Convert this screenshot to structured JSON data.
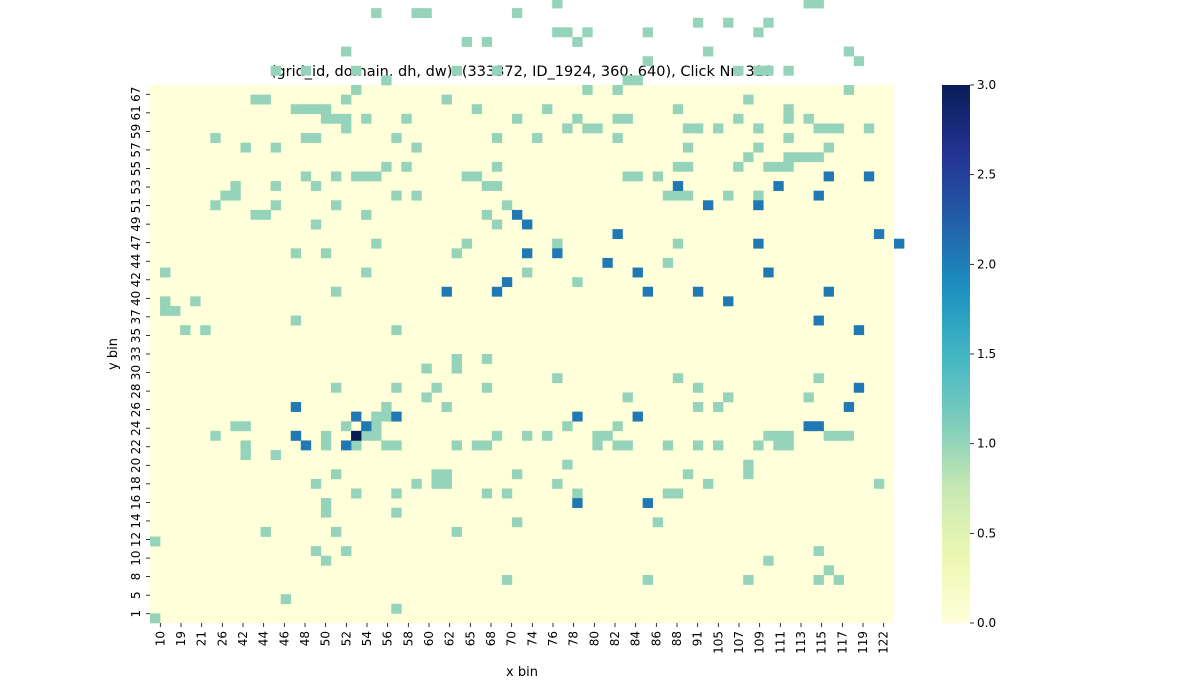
{
  "chart_data": {
    "type": "heatmap",
    "title": "(grid_id, domain, dh, dw): (333372, ID_1924, 360, 640), Click Nr: 319",
    "xlabel": "x bin",
    "ylabel": "y bin",
    "x_tick_labels": [
      "10",
      "19",
      "21",
      "26",
      "42",
      "44",
      "46",
      "48",
      "50",
      "52",
      "54",
      "56",
      "58",
      "60",
      "62",
      "65",
      "68",
      "70",
      "74",
      "76",
      "78",
      "80",
      "82",
      "84",
      "86",
      "88",
      "91",
      "105",
      "107",
      "109",
      "111",
      "113",
      "115",
      "117",
      "119",
      "122"
    ],
    "y_tick_labels": [
      "1",
      "5",
      "8",
      "10",
      "12",
      "14",
      "16",
      "18",
      "20",
      "22",
      "24",
      "26",
      "28",
      "30",
      "33",
      "35",
      "37",
      "40",
      "42",
      "44",
      "47",
      "49",
      "51",
      "53",
      "55",
      "57",
      "59",
      "61",
      "67"
    ],
    "colorbar": {
      "min": 0.0,
      "max": 3.0,
      "ticks": [
        "0.0",
        "0.5",
        "1.0",
        "1.5",
        "2.0",
        "2.5",
        "3.0"
      ]
    },
    "colors": {
      "low": "#ffffd9",
      "one": "#95d4bb",
      "two": "#2079b5",
      "three": "#081d58"
    },
    "grid_columns": 74,
    "grid_rows": 56,
    "cells": [
      [
        0,
        0,
        1
      ],
      [
        24,
        1,
        1
      ],
      [
        13,
        2,
        1
      ],
      [
        35,
        4,
        1
      ],
      [
        49,
        4,
        1
      ],
      [
        59,
        4,
        1
      ],
      [
        66,
        4,
        1
      ],
      [
        68,
        4,
        1
      ],
      [
        67,
        5,
        1
      ],
      [
        17,
        6,
        1
      ],
      [
        61,
        6,
        1
      ],
      [
        16,
        7,
        1
      ],
      [
        19,
        7,
        1
      ],
      [
        66,
        7,
        1
      ],
      [
        0,
        8,
        1
      ],
      [
        11,
        9,
        1
      ],
      [
        18,
        9,
        1
      ],
      [
        30,
        9,
        1
      ],
      [
        50,
        10,
        1
      ],
      [
        36,
        10,
        1
      ],
      [
        17,
        11,
        1
      ],
      [
        24,
        11,
        1
      ],
      [
        17,
        12,
        1
      ],
      [
        20,
        13,
        1
      ],
      [
        24,
        13,
        1
      ],
      [
        33,
        13,
        1
      ],
      [
        35,
        13,
        1
      ],
      [
        42,
        13,
        1
      ],
      [
        51,
        13,
        1
      ],
      [
        52,
        13,
        1
      ],
      [
        16,
        14,
        1
      ],
      [
        26,
        14,
        1
      ],
      [
        28,
        14,
        1
      ],
      [
        29,
        14,
        1
      ],
      [
        40,
        14,
        1
      ],
      [
        55,
        14,
        1
      ],
      [
        72,
        14,
        1
      ],
      [
        18,
        15,
        1
      ],
      [
        53,
        15,
        1
      ],
      [
        59,
        15,
        1
      ],
      [
        28,
        15,
        1
      ],
      [
        29,
        15,
        1
      ],
      [
        36,
        15,
        1
      ],
      [
        41,
        16,
        1
      ],
      [
        59,
        16,
        1
      ],
      [
        9,
        17,
        1
      ],
      [
        12,
        17,
        1
      ],
      [
        9,
        18,
        1
      ],
      [
        17,
        18,
        1
      ],
      [
        20,
        18,
        1
      ],
      [
        23,
        18,
        1
      ],
      [
        24,
        18,
        1
      ],
      [
        30,
        18,
        1
      ],
      [
        32,
        18,
        1
      ],
      [
        33,
        18,
        1
      ],
      [
        44,
        18,
        1
      ],
      [
        46,
        18,
        1
      ],
      [
        47,
        18,
        1
      ],
      [
        51,
        18,
        1
      ],
      [
        54,
        18,
        1
      ],
      [
        56,
        18,
        1
      ],
      [
        60,
        18,
        1
      ],
      [
        63,
        18,
        1
      ],
      [
        62,
        18,
        1
      ],
      [
        63,
        19,
        1
      ],
      [
        6,
        19,
        1
      ],
      [
        14,
        19,
        1
      ],
      [
        20,
        19,
        1
      ],
      [
        21,
        19,
        1
      ],
      [
        22,
        19,
        1
      ],
      [
        17,
        19,
        1
      ],
      [
        34,
        19,
        1
      ],
      [
        37,
        19,
        1
      ],
      [
        39,
        19,
        1
      ],
      [
        44,
        19,
        1
      ],
      [
        45,
        19,
        1
      ],
      [
        61,
        19,
        1
      ],
      [
        62,
        19,
        1
      ],
      [
        67,
        19,
        1
      ],
      [
        68,
        19,
        1
      ],
      [
        69,
        19,
        1
      ],
      [
        8,
        20,
        1
      ],
      [
        9,
        20,
        1
      ],
      [
        22,
        20,
        1
      ],
      [
        19,
        20,
        1
      ],
      [
        41,
        20,
        1
      ],
      [
        46,
        20,
        1
      ],
      [
        22,
        21,
        1
      ],
      [
        23,
        21,
        1
      ],
      [
        23,
        22,
        1
      ],
      [
        29,
        22,
        1
      ],
      [
        54,
        22,
        1
      ],
      [
        56,
        22,
        1
      ],
      [
        27,
        23,
        1
      ],
      [
        47,
        23,
        1
      ],
      [
        57,
        23,
        1
      ],
      [
        65,
        23,
        1
      ],
      [
        18,
        24,
        1
      ],
      [
        24,
        24,
        1
      ],
      [
        28,
        24,
        1
      ],
      [
        54,
        24,
        1
      ],
      [
        33,
        24,
        1
      ],
      [
        40,
        25,
        1
      ],
      [
        52,
        25,
        1
      ],
      [
        66,
        25,
        1
      ],
      [
        27,
        26,
        1
      ],
      [
        30,
        26,
        1
      ],
      [
        30,
        27,
        1
      ],
      [
        33,
        27,
        1
      ],
      [
        3,
        30,
        1
      ],
      [
        5,
        30,
        1
      ],
      [
        24,
        30,
        1
      ],
      [
        14,
        31,
        1
      ],
      [
        2,
        32,
        1
      ],
      [
        1,
        33,
        1
      ],
      [
        1,
        32,
        1
      ],
      [
        4,
        33,
        1
      ],
      [
        18,
        34,
        1
      ],
      [
        42,
        35,
        1
      ],
      [
        1,
        36,
        1
      ],
      [
        21,
        36,
        1
      ],
      [
        37,
        36,
        1
      ],
      [
        51,
        37,
        1
      ],
      [
        14,
        38,
        1
      ],
      [
        17,
        38,
        1
      ],
      [
        30,
        38,
        1
      ],
      [
        22,
        39,
        1
      ],
      [
        31,
        39,
        1
      ],
      [
        40,
        39,
        1
      ],
      [
        52,
        39,
        1
      ],
      [
        34,
        41,
        1
      ],
      [
        6,
        43,
        1
      ],
      [
        10,
        42,
        1
      ],
      [
        11,
        42,
        1
      ],
      [
        16,
        41,
        1
      ],
      [
        21,
        42,
        1
      ],
      [
        33,
        42,
        1
      ],
      [
        8,
        45,
        1
      ],
      [
        12,
        43,
        1
      ],
      [
        18,
        43,
        1
      ],
      [
        35,
        43,
        1
      ],
      [
        12,
        45,
        1
      ],
      [
        16,
        45,
        1
      ],
      [
        15,
        46,
        1
      ],
      [
        18,
        46,
        1
      ],
      [
        20,
        46,
        1
      ],
      [
        21,
        46,
        1
      ],
      [
        22,
        46,
        1
      ],
      [
        23,
        47,
        1
      ],
      [
        25,
        47,
        1
      ],
      [
        33,
        45,
        1
      ],
      [
        34,
        45,
        1
      ],
      [
        31,
        46,
        1
      ],
      [
        32,
        46,
        1
      ],
      [
        34,
        47,
        1
      ],
      [
        47,
        46,
        1
      ],
      [
        48,
        46,
        1
      ],
      [
        50,
        46,
        1
      ],
      [
        52,
        47,
        1
      ],
      [
        53,
        47,
        1
      ],
      [
        58,
        47,
        1
      ],
      [
        59,
        48,
        1
      ],
      [
        61,
        47,
        1
      ],
      [
        62,
        47,
        1
      ],
      [
        63,
        47,
        1
      ],
      [
        53,
        49,
        1
      ],
      [
        60,
        49,
        1
      ],
      [
        63,
        48,
        1
      ],
      [
        64,
        48,
        1
      ],
      [
        65,
        48,
        1
      ],
      [
        66,
        48,
        1
      ],
      [
        67,
        49,
        1
      ],
      [
        19,
        51,
        1
      ],
      [
        17,
        52,
        1
      ],
      [
        18,
        52,
        1
      ],
      [
        19,
        52,
        1
      ],
      [
        21,
        52,
        1
      ],
      [
        25,
        52,
        1
      ],
      [
        36,
        52,
        1
      ],
      [
        42,
        52,
        1
      ],
      [
        41,
        51,
        1
      ],
      [
        43,
        51,
        1
      ],
      [
        44,
        51,
        1
      ],
      [
        46,
        52,
        1
      ],
      [
        47,
        52,
        1
      ],
      [
        53,
        51,
        1
      ],
      [
        54,
        51,
        1
      ],
      [
        56,
        51,
        1
      ],
      [
        58,
        52,
        1
      ],
      [
        60,
        51,
        1
      ],
      [
        63,
        52,
        1
      ],
      [
        65,
        52,
        1
      ],
      [
        66,
        51,
        1
      ],
      [
        67,
        51,
        1
      ],
      [
        68,
        51,
        1
      ],
      [
        71,
        51,
        1
      ],
      [
        9,
        49,
        1
      ],
      [
        12,
        49,
        1
      ],
      [
        26,
        49,
        1
      ],
      [
        6,
        50,
        1
      ],
      [
        15,
        50,
        1
      ],
      [
        16,
        50,
        1
      ],
      [
        24,
        50,
        1
      ],
      [
        46,
        50,
        1
      ],
      [
        63,
        50,
        1
      ],
      [
        8,
        44,
        1
      ],
      [
        7,
        44,
        1
      ],
      [
        24,
        44,
        1
      ],
      [
        26,
        44,
        1
      ],
      [
        51,
        44,
        1
      ],
      [
        52,
        44,
        1
      ],
      [
        53,
        44,
        1
      ],
      [
        57,
        44,
        1
      ],
      [
        60,
        44,
        1
      ],
      [
        14,
        53,
        1
      ],
      [
        15,
        53,
        1
      ],
      [
        16,
        53,
        1
      ],
      [
        17,
        53,
        1
      ],
      [
        32,
        53,
        1
      ],
      [
        39,
        53,
        1
      ],
      [
        52,
        53,
        1
      ],
      [
        63,
        53,
        1
      ],
      [
        10,
        54,
        1
      ],
      [
        11,
        54,
        1
      ],
      [
        19,
        54,
        1
      ],
      [
        29,
        54,
        1
      ],
      [
        59,
        54,
        1
      ],
      [
        69,
        55,
        1
      ],
      [
        20,
        55,
        1
      ],
      [
        23,
        56,
        1
      ],
      [
        46,
        55,
        1
      ],
      [
        43,
        55,
        1
      ],
      [
        47,
        56,
        1
      ],
      [
        48,
        56,
        1
      ],
      [
        12,
        57,
        1
      ],
      [
        15,
        57,
        1
      ],
      [
        20,
        57,
        1
      ],
      [
        30,
        57,
        1
      ],
      [
        34,
        57,
        1
      ],
      [
        58,
        57,
        1
      ],
      [
        60,
        57,
        1
      ],
      [
        61,
        57,
        1
      ],
      [
        63,
        57,
        1
      ],
      [
        49,
        58,
        1
      ],
      [
        70,
        58,
        1
      ],
      [
        55,
        59,
        1
      ],
      [
        31,
        60,
        1
      ],
      [
        33,
        60,
        1
      ],
      [
        42,
        60,
        1
      ],
      [
        43,
        61,
        1
      ],
      [
        49,
        61,
        1
      ],
      [
        54,
        62,
        1
      ],
      [
        60,
        61,
        1
      ],
      [
        61,
        62,
        1
      ],
      [
        57,
        62,
        1
      ],
      [
        22,
        63,
        1
      ],
      [
        26,
        63,
        1
      ],
      [
        27,
        63,
        1
      ],
      [
        36,
        63,
        1
      ],
      [
        69,
        59,
        1
      ],
      [
        19,
        59,
        1
      ],
      [
        40,
        61,
        1
      ],
      [
        41,
        61,
        1
      ],
      [
        34,
        50,
        1
      ],
      [
        38,
        50,
        1
      ],
      [
        40,
        64,
        1
      ],
      [
        65,
        64,
        1
      ],
      [
        66,
        64,
        1
      ],
      [
        49,
        12,
        2
      ],
      [
        42,
        12,
        2
      ],
      [
        15,
        18,
        2
      ],
      [
        19,
        18,
        2
      ],
      [
        14,
        19,
        2
      ],
      [
        21,
        20,
        2
      ],
      [
        20,
        21,
        2
      ],
      [
        24,
        21,
        2
      ],
      [
        14,
        22,
        2
      ],
      [
        42,
        21,
        2
      ],
      [
        48,
        21,
        2
      ],
      [
        65,
        20,
        2
      ],
      [
        66,
        20,
        2
      ],
      [
        69,
        22,
        2
      ],
      [
        70,
        24,
        2
      ],
      [
        70,
        30,
        2
      ],
      [
        66,
        31,
        2
      ],
      [
        67,
        34,
        2
      ],
      [
        57,
        33,
        2
      ],
      [
        37,
        41,
        2
      ],
      [
        36,
        42,
        2
      ],
      [
        37,
        38,
        2
      ],
      [
        40,
        38,
        2
      ],
      [
        52,
        45,
        2
      ],
      [
        55,
        43,
        2
      ],
      [
        60,
        43,
        2
      ],
      [
        62,
        45,
        2
      ],
      [
        66,
        44,
        2
      ],
      [
        67,
        46,
        2
      ],
      [
        71,
        46,
        2
      ],
      [
        72,
        40,
        2
      ],
      [
        74,
        39,
        2
      ],
      [
        60,
        39,
        2
      ],
      [
        61,
        36,
        2
      ],
      [
        45,
        37,
        2
      ],
      [
        46,
        40,
        2
      ],
      [
        48,
        36,
        2
      ],
      [
        49,
        34,
        2
      ],
      [
        54,
        34,
        2
      ],
      [
        29,
        34,
        2
      ],
      [
        34,
        34,
        2
      ],
      [
        35,
        35,
        2
      ],
      [
        20,
        19,
        3
      ]
    ]
  }
}
